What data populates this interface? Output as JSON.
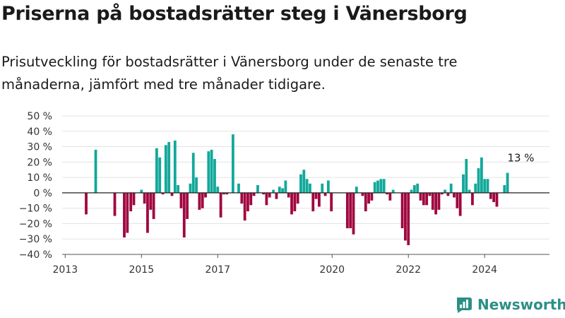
{
  "title": "Priserna på bostadsrätter steg i Vänersborg",
  "subtitle": "Prisutveckling för bostadsrätter i Vänersborg under de senaste tre månaderna, jämfört med tre månader tidigare.",
  "logo": {
    "text": "Newsworthy",
    "icon": "newsworthy-logo-icon",
    "color": "#2b8f86"
  },
  "colors": {
    "positive": "#12a89a",
    "negative": "#a0063f",
    "grid": "#e3e3e3",
    "zero_line": "#222222"
  },
  "chart_data": {
    "type": "bar",
    "ylim": [
      -40,
      50
    ],
    "yticks": [
      -40,
      -30,
      -20,
      -10,
      0,
      10,
      20,
      30,
      40,
      50
    ],
    "ytick_labels": [
      "−40 %",
      "−30 %",
      "−20 %",
      "−10 %",
      "0 %",
      "10 %",
      "20 %",
      "30 %",
      "40 %",
      "50 %"
    ],
    "xticks": [
      2013,
      2015,
      2017,
      2020,
      2022,
      2024
    ],
    "xlim": [
      2012.92,
      2025.7
    ],
    "annotation": {
      "text": "13 %",
      "x": 2024.95,
      "y": 13
    },
    "series": [
      {
        "x": 2013.55,
        "y": -14
      },
      {
        "x": 2013.8,
        "y": 28
      },
      {
        "x": 2014.3,
        "y": -15
      },
      {
        "x": 2014.55,
        "y": -29
      },
      {
        "x": 2014.63,
        "y": -26
      },
      {
        "x": 2014.72,
        "y": -12
      },
      {
        "x": 2014.8,
        "y": -8
      },
      {
        "x": 2015.0,
        "y": 2
      },
      {
        "x": 2015.08,
        "y": -7
      },
      {
        "x": 2015.16,
        "y": -26
      },
      {
        "x": 2015.24,
        "y": -11
      },
      {
        "x": 2015.32,
        "y": -17
      },
      {
        "x": 2015.4,
        "y": 29
      },
      {
        "x": 2015.48,
        "y": 23
      },
      {
        "x": 2015.56,
        "y": -1
      },
      {
        "x": 2015.64,
        "y": 31
      },
      {
        "x": 2015.72,
        "y": 33
      },
      {
        "x": 2015.8,
        "y": -2
      },
      {
        "x": 2015.88,
        "y": 34
      },
      {
        "x": 2015.96,
        "y": 5
      },
      {
        "x": 2016.04,
        "y": -10
      },
      {
        "x": 2016.12,
        "y": -29
      },
      {
        "x": 2016.2,
        "y": -17
      },
      {
        "x": 2016.28,
        "y": 6
      },
      {
        "x": 2016.36,
        "y": 26
      },
      {
        "x": 2016.44,
        "y": 10
      },
      {
        "x": 2016.52,
        "y": -11
      },
      {
        "x": 2016.6,
        "y": -10
      },
      {
        "x": 2016.68,
        "y": -3
      },
      {
        "x": 2016.76,
        "y": 27
      },
      {
        "x": 2016.84,
        "y": 28
      },
      {
        "x": 2016.92,
        "y": 22
      },
      {
        "x": 2017.0,
        "y": 4
      },
      {
        "x": 2017.08,
        "y": -16
      },
      {
        "x": 2017.16,
        "y": -1
      },
      {
        "x": 2017.24,
        "y": -1
      },
      {
        "x": 2017.32,
        "y": 0
      },
      {
        "x": 2017.4,
        "y": 38
      },
      {
        "x": 2017.55,
        "y": 6
      },
      {
        "x": 2017.63,
        "y": -7
      },
      {
        "x": 2017.71,
        "y": -18
      },
      {
        "x": 2017.79,
        "y": -12
      },
      {
        "x": 2017.87,
        "y": -8
      },
      {
        "x": 2017.95,
        "y": -2
      },
      {
        "x": 2018.05,
        "y": 5
      },
      {
        "x": 2018.2,
        "y": -1
      },
      {
        "x": 2018.28,
        "y": -8
      },
      {
        "x": 2018.36,
        "y": -3
      },
      {
        "x": 2018.46,
        "y": 2
      },
      {
        "x": 2018.54,
        "y": -4
      },
      {
        "x": 2018.62,
        "y": 4
      },
      {
        "x": 2018.7,
        "y": 3
      },
      {
        "x": 2018.78,
        "y": 8
      },
      {
        "x": 2018.86,
        "y": -3
      },
      {
        "x": 2018.94,
        "y": -14
      },
      {
        "x": 2019.02,
        "y": -12
      },
      {
        "x": 2019.1,
        "y": -7
      },
      {
        "x": 2019.18,
        "y": 12
      },
      {
        "x": 2019.26,
        "y": 15
      },
      {
        "x": 2019.34,
        "y": 9
      },
      {
        "x": 2019.42,
        "y": 6
      },
      {
        "x": 2019.5,
        "y": -12
      },
      {
        "x": 2019.58,
        "y": -4
      },
      {
        "x": 2019.66,
        "y": -9
      },
      {
        "x": 2019.74,
        "y": 6
      },
      {
        "x": 2019.82,
        "y": -2
      },
      {
        "x": 2019.9,
        "y": 8
      },
      {
        "x": 2019.98,
        "y": -12
      },
      {
        "x": 2020.4,
        "y": -23
      },
      {
        "x": 2020.48,
        "y": -23
      },
      {
        "x": 2020.56,
        "y": -27
      },
      {
        "x": 2020.64,
        "y": 4
      },
      {
        "x": 2020.8,
        "y": -2
      },
      {
        "x": 2020.88,
        "y": -12
      },
      {
        "x": 2020.96,
        "y": -7
      },
      {
        "x": 2021.04,
        "y": -5
      },
      {
        "x": 2021.12,
        "y": 7
      },
      {
        "x": 2021.2,
        "y": 8
      },
      {
        "x": 2021.28,
        "y": 9
      },
      {
        "x": 2021.36,
        "y": 9
      },
      {
        "x": 2021.44,
        "y": -1
      },
      {
        "x": 2021.52,
        "y": -5
      },
      {
        "x": 2021.6,
        "y": 2
      },
      {
        "x": 2021.84,
        "y": -23
      },
      {
        "x": 2021.92,
        "y": -31
      },
      {
        "x": 2022.0,
        "y": -34
      },
      {
        "x": 2022.08,
        "y": 2
      },
      {
        "x": 2022.16,
        "y": 5
      },
      {
        "x": 2022.24,
        "y": 6
      },
      {
        "x": 2022.32,
        "y": -5
      },
      {
        "x": 2022.4,
        "y": -8
      },
      {
        "x": 2022.48,
        "y": -8
      },
      {
        "x": 2022.56,
        "y": -2
      },
      {
        "x": 2022.64,
        "y": -11
      },
      {
        "x": 2022.72,
        "y": -14
      },
      {
        "x": 2022.8,
        "y": -11
      },
      {
        "x": 2022.88,
        "y": -1
      },
      {
        "x": 2022.96,
        "y": 2
      },
      {
        "x": 2023.04,
        "y": -2
      },
      {
        "x": 2023.12,
        "y": 6
      },
      {
        "x": 2023.2,
        "y": -3
      },
      {
        "x": 2023.28,
        "y": -10
      },
      {
        "x": 2023.36,
        "y": -15
      },
      {
        "x": 2023.44,
        "y": 12
      },
      {
        "x": 2023.52,
        "y": 22
      },
      {
        "x": 2023.6,
        "y": 2
      },
      {
        "x": 2023.68,
        "y": -8
      },
      {
        "x": 2023.76,
        "y": 6
      },
      {
        "x": 2023.84,
        "y": 16
      },
      {
        "x": 2023.92,
        "y": 23
      },
      {
        "x": 2024.0,
        "y": 9
      },
      {
        "x": 2024.08,
        "y": 9
      },
      {
        "x": 2024.16,
        "y": -4
      },
      {
        "x": 2024.24,
        "y": -6
      },
      {
        "x": 2024.32,
        "y": -9
      },
      {
        "x": 2024.52,
        "y": 5
      },
      {
        "x": 2024.6,
        "y": 13
      }
    ]
  }
}
